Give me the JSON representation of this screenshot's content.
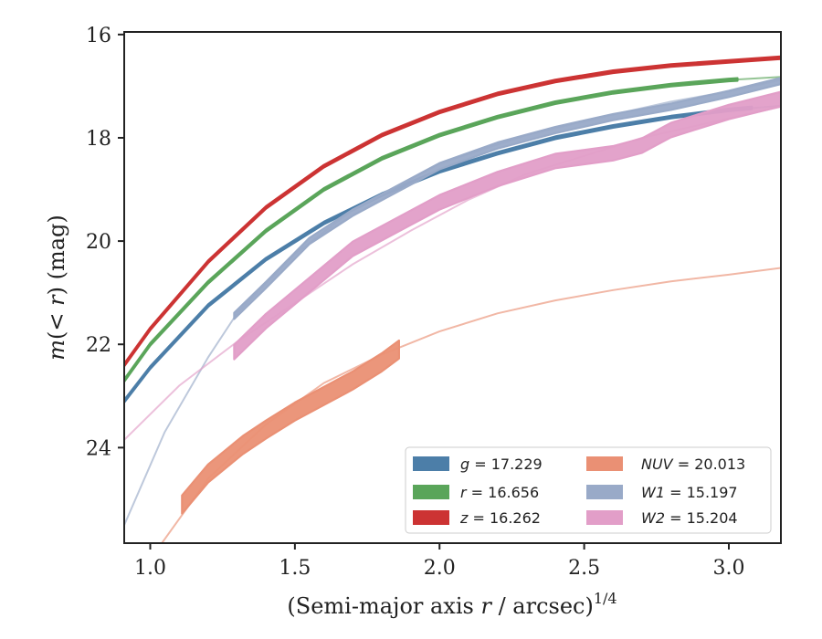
{
  "chart_data": {
    "type": "line",
    "xlabel": "(Semi-major axis r / arcsec)^{1/4}",
    "xlabel_parts": {
      "prefix": "(Semi-major axis ",
      "var": "r",
      "suffix": " / arcsec)",
      "exponent": "1/4"
    },
    "ylabel": "m(< r) (mag)",
    "ylabel_parts": {
      "var": "m",
      "open": "(",
      "lt": "< ",
      "r": "r",
      "close": ")",
      "unit": " (mag)"
    },
    "xlim": [
      0.91,
      3.18
    ],
    "ylim": [
      25.85,
      15.95
    ],
    "y_inverted": true,
    "x_ticks": [
      1.0,
      1.5,
      2.0,
      2.5,
      3.0
    ],
    "x_tick_labels": [
      "1.0",
      "1.5",
      "2.0",
      "2.5",
      "3.0"
    ],
    "y_ticks": [
      16,
      18,
      20,
      22,
      24
    ],
    "y_tick_labels": [
      "16",
      "18",
      "20",
      "22",
      "24"
    ],
    "grid": false,
    "legend_position": "lower-right",
    "legend_entries": [
      {
        "band": "g",
        "value": "17.229"
      },
      {
        "band": "r",
        "value": "16.656"
      },
      {
        "band": "z",
        "value": "16.262"
      },
      {
        "band": "NUV",
        "value": "20.013"
      },
      {
        "band": "W1",
        "value": "15.197"
      },
      {
        "band": "W2",
        "value": "15.204"
      }
    ],
    "series": [
      {
        "name": "g = 17.229",
        "color": "#4c7ea8",
        "band_width": 0.05,
        "thick_x_range": [
          0.91,
          3.08
        ],
        "thin": [
          [
            0.91,
            23.1
          ],
          [
            1.0,
            22.45
          ],
          [
            1.2,
            21.25
          ],
          [
            1.4,
            20.35
          ],
          [
            1.6,
            19.65
          ],
          [
            1.8,
            19.1
          ],
          [
            2.0,
            18.65
          ],
          [
            2.2,
            18.3
          ],
          [
            2.4,
            18.0
          ],
          [
            2.6,
            17.78
          ],
          [
            2.8,
            17.6
          ],
          [
            3.0,
            17.46
          ],
          [
            3.18,
            17.38
          ]
        ],
        "thick": [
          [
            0.91,
            23.1
          ],
          [
            1.0,
            22.45
          ],
          [
            1.2,
            21.25
          ],
          [
            1.4,
            20.35
          ],
          [
            1.6,
            19.65
          ],
          [
            1.8,
            19.1
          ],
          [
            2.0,
            18.65
          ],
          [
            2.2,
            18.3
          ],
          [
            2.4,
            18.0
          ],
          [
            2.6,
            17.78
          ],
          [
            2.8,
            17.6
          ],
          [
            3.0,
            17.46
          ],
          [
            3.08,
            17.42
          ]
        ]
      },
      {
        "name": "r = 16.656",
        "color": "#5aa55a",
        "band_width": 0.05,
        "thick_x_range": [
          0.91,
          3.03
        ],
        "thin": [
          [
            0.91,
            22.7
          ],
          [
            1.0,
            22.0
          ],
          [
            1.2,
            20.8
          ],
          [
            1.4,
            19.8
          ],
          [
            1.6,
            19.0
          ],
          [
            1.8,
            18.4
          ],
          [
            2.0,
            17.95
          ],
          [
            2.2,
            17.6
          ],
          [
            2.4,
            17.32
          ],
          [
            2.6,
            17.12
          ],
          [
            2.8,
            16.98
          ],
          [
            3.0,
            16.88
          ],
          [
            3.18,
            16.82
          ]
        ],
        "thick": [
          [
            0.91,
            22.7
          ],
          [
            1.0,
            22.0
          ],
          [
            1.2,
            20.8
          ],
          [
            1.4,
            19.8
          ],
          [
            1.6,
            19.0
          ],
          [
            1.8,
            18.4
          ],
          [
            2.0,
            17.95
          ],
          [
            2.2,
            17.6
          ],
          [
            2.4,
            17.32
          ],
          [
            2.6,
            17.12
          ],
          [
            2.8,
            16.98
          ],
          [
            3.0,
            16.88
          ],
          [
            3.03,
            16.87
          ]
        ]
      },
      {
        "name": "z = 16.262",
        "color": "#cc3333",
        "band_width": 0.05,
        "thick_x_range": [
          0.91,
          3.18
        ],
        "thin": [
          [
            0.91,
            22.4
          ],
          [
            1.0,
            21.7
          ],
          [
            1.2,
            20.4
          ],
          [
            1.4,
            19.35
          ],
          [
            1.6,
            18.55
          ],
          [
            1.8,
            17.95
          ],
          [
            2.0,
            17.5
          ],
          [
            2.2,
            17.15
          ],
          [
            2.4,
            16.9
          ],
          [
            2.6,
            16.72
          ],
          [
            2.8,
            16.6
          ],
          [
            3.0,
            16.52
          ],
          [
            3.18,
            16.45
          ]
        ],
        "thick": [
          [
            0.91,
            22.4
          ],
          [
            1.0,
            21.7
          ],
          [
            1.2,
            20.4
          ],
          [
            1.4,
            19.35
          ],
          [
            1.6,
            18.55
          ],
          [
            1.8,
            17.95
          ],
          [
            2.0,
            17.5
          ],
          [
            2.2,
            17.15
          ],
          [
            2.4,
            16.9
          ],
          [
            2.6,
            16.72
          ],
          [
            2.8,
            16.6
          ],
          [
            3.0,
            16.52
          ],
          [
            3.18,
            16.45
          ]
        ]
      },
      {
        "name": "NUV = 20.013",
        "color": "#ea9074",
        "band_width": 0.35,
        "thick_x_range": [
          1.11,
          1.86
        ],
        "thin": [
          [
            1.04,
            25.85
          ],
          [
            1.2,
            24.6
          ],
          [
            1.4,
            23.55
          ],
          [
            1.6,
            22.75
          ],
          [
            1.8,
            22.2
          ],
          [
            2.0,
            21.75
          ],
          [
            2.2,
            21.4
          ],
          [
            2.4,
            21.15
          ],
          [
            2.6,
            20.95
          ],
          [
            2.8,
            20.78
          ],
          [
            3.0,
            20.65
          ],
          [
            3.18,
            20.52
          ]
        ],
        "thick": [
          [
            1.11,
            25.1
          ],
          [
            1.2,
            24.5
          ],
          [
            1.32,
            23.95
          ],
          [
            1.4,
            23.65
          ],
          [
            1.5,
            23.3
          ],
          [
            1.6,
            23.0
          ],
          [
            1.7,
            22.7
          ],
          [
            1.8,
            22.35
          ],
          [
            1.86,
            22.1
          ]
        ]
      },
      {
        "name": "W1 = 15.197",
        "color": "#99aac8",
        "band_width": 0.12,
        "thick_x_range": [
          1.29,
          3.18
        ],
        "thin": [
          [
            0.91,
            25.5
          ],
          [
            1.05,
            23.7
          ],
          [
            1.2,
            22.25
          ],
          [
            1.3,
            21.4
          ],
          [
            1.5,
            20.25
          ],
          [
            1.7,
            19.4
          ],
          [
            2.0,
            18.5
          ],
          [
            2.3,
            17.95
          ],
          [
            2.6,
            17.55
          ],
          [
            2.8,
            17.3
          ],
          [
            3.0,
            17.1
          ],
          [
            3.18,
            16.88
          ]
        ],
        "thick": [
          [
            1.29,
            21.45
          ],
          [
            1.4,
            20.85
          ],
          [
            1.55,
            20.0
          ],
          [
            1.7,
            19.45
          ],
          [
            1.85,
            19.0
          ],
          [
            2.0,
            18.55
          ],
          [
            2.2,
            18.15
          ],
          [
            2.4,
            17.85
          ],
          [
            2.6,
            17.6
          ],
          [
            2.8,
            17.4
          ],
          [
            3.0,
            17.15
          ],
          [
            3.18,
            16.9
          ]
        ]
      },
      {
        "name": "W2 = 15.204",
        "color": "#e29ec8",
        "band_width": 0.28,
        "thick_x_range": [
          1.29,
          3.18
        ],
        "thin": [
          [
            0.91,
            23.85
          ],
          [
            1.1,
            22.8
          ],
          [
            1.3,
            21.95
          ],
          [
            1.5,
            21.2
          ],
          [
            1.7,
            20.45
          ],
          [
            1.9,
            19.8
          ],
          [
            2.1,
            19.2
          ],
          [
            2.3,
            18.7
          ],
          [
            2.5,
            18.35
          ],
          [
            2.7,
            18.0
          ],
          [
            2.9,
            17.75
          ],
          [
            3.18,
            17.4
          ]
        ],
        "thick": [
          [
            1.29,
            22.15
          ],
          [
            1.4,
            21.55
          ],
          [
            1.55,
            20.85
          ],
          [
            1.7,
            20.15
          ],
          [
            1.85,
            19.7
          ],
          [
            2.0,
            19.25
          ],
          [
            2.2,
            18.8
          ],
          [
            2.4,
            18.45
          ],
          [
            2.6,
            18.3
          ],
          [
            2.7,
            18.15
          ],
          [
            2.8,
            17.85
          ],
          [
            3.0,
            17.5
          ],
          [
            3.18,
            17.25
          ]
        ]
      }
    ]
  }
}
